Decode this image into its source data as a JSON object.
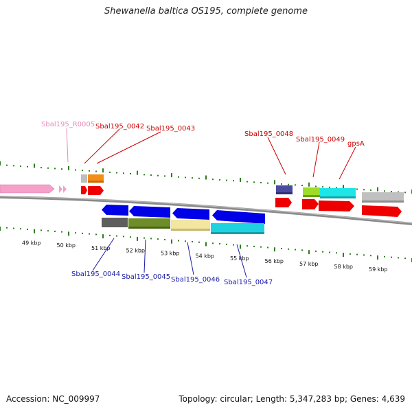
{
  "title": "Shewanella baltica OS195, complete genome",
  "footer": {
    "accession": "Accession: NC_009997",
    "summary": "Topology: circular; Length: 5,347,283 bp; Genes: 4,639"
  },
  "ticks": [
    "49 kbp",
    "50 kbp",
    "51 kbp",
    "52 kbp",
    "53 kbp",
    "54 kbp",
    "55 kbp",
    "56 kbp",
    "57 kbp",
    "58 kbp",
    "59 kbp"
  ],
  "colors": {
    "backbone": "#808080",
    "ruler_tick": "#2e7d1e",
    "label_red": "#cc0000",
    "label_blue": "#1a1aa6",
    "label_pink": "#e888b8",
    "rna_pink": "#f4a0c8",
    "cds_red": "#ee0000",
    "cds_blue": "#0000e6"
  },
  "labels": [
    {
      "id": "Sbal195_R0005",
      "text": "Sbal195_R0005",
      "color": "#e888b8"
    },
    {
      "id": "Sbal195_0042",
      "text": "Sbal195_0042",
      "color": "#cc0000"
    },
    {
      "id": "Sbal195_0043",
      "text": "Sbal195_0043",
      "color": "#cc0000"
    },
    {
      "id": "Sbal195_0048",
      "text": "Sbal195_0048",
      "color": "#cc0000"
    },
    {
      "id": "Sbal195_0049",
      "text": "Sbal195_0049",
      "color": "#cc0000"
    },
    {
      "id": "gpsA",
      "text": "gpsA",
      "color": "#cc0000"
    },
    {
      "id": "Sbal195_0044",
      "text": "Sbal195_0044",
      "color": "#1a1aa6"
    },
    {
      "id": "Sbal195_0045",
      "text": "Sbal195_0045",
      "color": "#1a1aa6"
    },
    {
      "id": "Sbal195_0046",
      "text": "Sbal195_0046",
      "color": "#1a1aa6"
    },
    {
      "id": "Sbal195_0047",
      "text": "Sbal195_0047",
      "color": "#1a1aa6"
    }
  ]
}
